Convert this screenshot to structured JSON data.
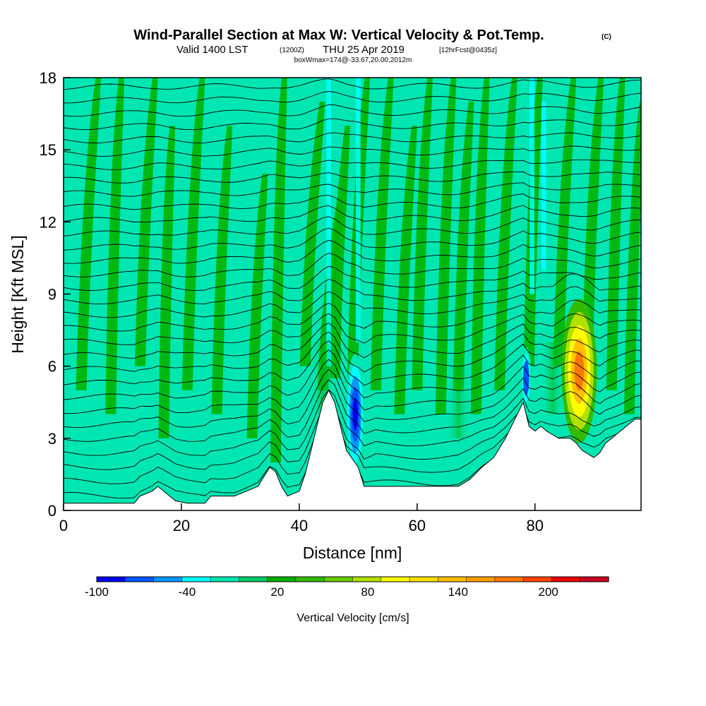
{
  "chart_data": {
    "type": "heatmap",
    "title_main": "Wind-Parallel Section at Max W: Vertical Velocity & Pot.Temp.",
    "title_mark": "(C)",
    "subtitle_valid": "Valid 1400 LST",
    "subtitle_z": "(1200Z)",
    "subtitle_date": "THU 25 Apr 2019",
    "subtitle_fcst": "[12hrFcst@0435z]",
    "subtitle_box": "boxWmax=174@-33.67,20.00,2012m",
    "xlabel": "Distance [nm]",
    "ylabel": "Height [Kft MSL]",
    "xlim": [
      0,
      98
    ],
    "ylim": [
      0,
      18
    ],
    "x_ticks": [
      0,
      20,
      40,
      60,
      80
    ],
    "y_ticks": [
      0,
      3,
      6,
      9,
      12,
      15,
      18
    ],
    "colorbar": {
      "label": "Vertical Velocity [cm/s]",
      "tick_labels": [
        "-100",
        "-40",
        "20",
        "80",
        "140",
        "200"
      ],
      "tick_values": [
        -100,
        -40,
        20,
        80,
        140,
        200
      ],
      "range": [
        -100,
        240
      ],
      "colors": [
        "#0000ee",
        "#0055ff",
        "#0099ff",
        "#00ffff",
        "#00e6b2",
        "#00cc66",
        "#00b200",
        "#33bb00",
        "#66cc00",
        "#b2e000",
        "#ffff00",
        "#ffe000",
        "#ffc000",
        "#ffa000",
        "#ff7700",
        "#ff4400",
        "#ee0000",
        "#cc0022"
      ]
    },
    "features": [
      {
        "type": "updraft",
        "x_nm": 87.5,
        "height_kft": 5.8,
        "max_cm_s": 174
      },
      {
        "type": "downdraft",
        "x_nm": 49.5,
        "height_kft": 4.0,
        "min_cm_s": -100
      },
      {
        "type": "downdraft",
        "x_nm": 78.5,
        "height_kft": 5.5,
        "min_cm_s": -80
      }
    ],
    "terrain": [
      [
        0,
        0.3
      ],
      [
        4,
        0.3
      ],
      [
        8,
        0.3
      ],
      [
        12,
        0.3
      ],
      [
        13,
        0.6
      ],
      [
        15,
        0.8
      ],
      [
        16,
        1.0
      ],
      [
        17,
        0.8
      ],
      [
        18,
        0.6
      ],
      [
        19,
        0.4
      ],
      [
        21,
        0.3
      ],
      [
        24,
        0.3
      ],
      [
        25,
        0.6
      ],
      [
        29,
        0.6
      ],
      [
        31,
        0.8
      ],
      [
        33,
        1.0
      ],
      [
        35,
        1.8
      ],
      [
        36,
        1.6
      ],
      [
        37,
        1.0
      ],
      [
        38,
        0.6
      ],
      [
        40,
        0.8
      ],
      [
        41,
        1.5
      ],
      [
        42,
        2.5
      ],
      [
        43,
        3.5
      ],
      [
        44,
        4.5
      ],
      [
        45,
        5.0
      ],
      [
        46,
        4.5
      ],
      [
        47,
        3.5
      ],
      [
        48,
        2.5
      ],
      [
        50,
        1.8
      ],
      [
        51,
        1.0
      ],
      [
        52,
        1.0
      ],
      [
        56,
        1.0
      ],
      [
        60,
        1.0
      ],
      [
        64,
        1.0
      ],
      [
        67,
        1.0
      ],
      [
        69,
        1.3
      ],
      [
        71,
        1.8
      ],
      [
        73,
        2.2
      ],
      [
        75,
        3.0
      ],
      [
        76,
        3.5
      ],
      [
        77,
        4.0
      ],
      [
        78,
        4.5
      ],
      [
        79,
        3.5
      ],
      [
        80,
        3.3
      ],
      [
        81,
        3.5
      ],
      [
        82,
        3.3
      ],
      [
        84,
        3.0
      ],
      [
        86,
        3.0
      ],
      [
        87,
        2.8
      ],
      [
        88,
        2.5
      ],
      [
        90,
        2.2
      ],
      [
        91,
        2.4
      ],
      [
        92,
        2.8
      ],
      [
        93,
        3.0
      ],
      [
        94,
        3.2
      ],
      [
        96,
        3.6
      ],
      [
        97,
        3.8
      ],
      [
        98,
        3.8
      ]
    ]
  }
}
